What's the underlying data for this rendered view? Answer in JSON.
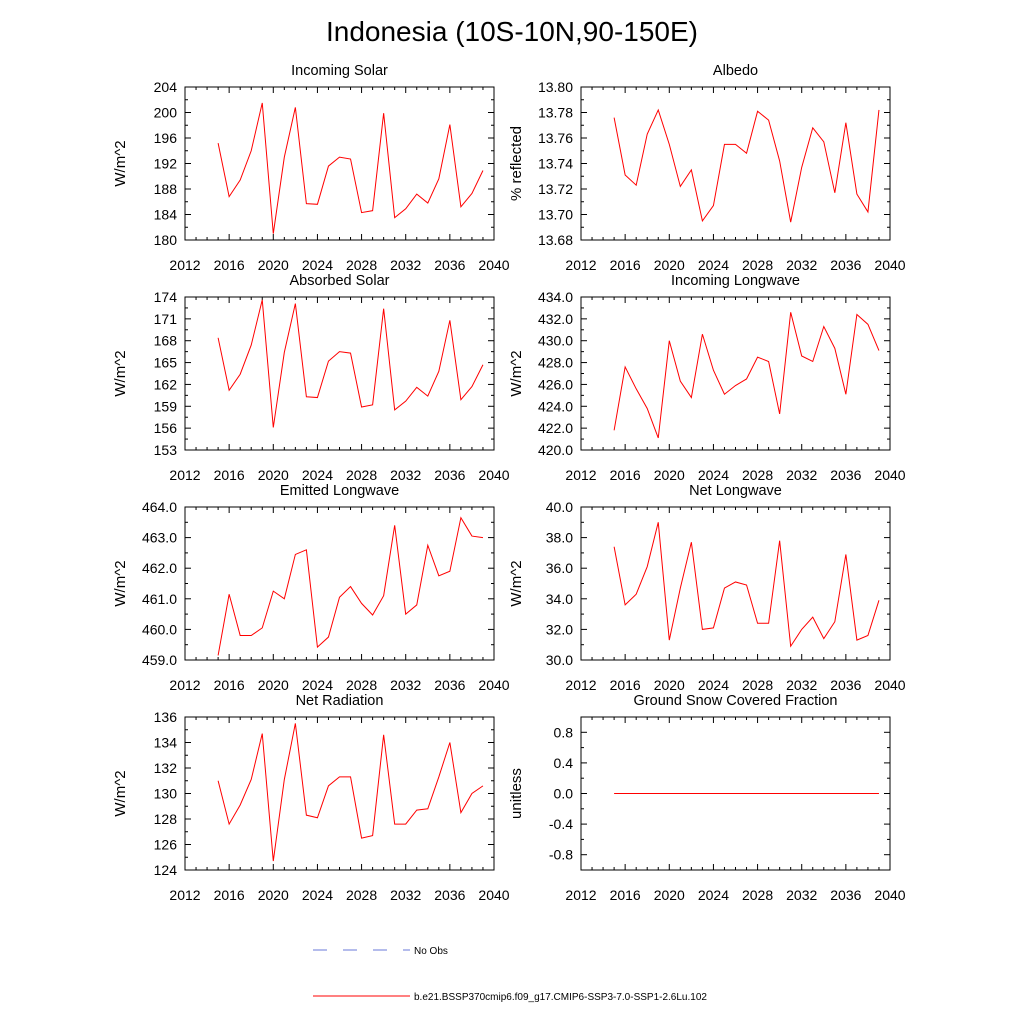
{
  "main_title": "Indonesia (10S-10N,90-150E)",
  "colors": {
    "series": "#ff0000",
    "no_obs": "#6a7ad8",
    "axis": "#000000"
  },
  "legend": {
    "no_obs_label": "No Obs",
    "series_label": "b.e21.BSSP370cmip6.f09_g17.CMIP6-SSP3-7.0-SSP1-2.6Lu.102"
  },
  "chart_data": [
    {
      "type": "line",
      "title": "Incoming Solar",
      "ylabel": "W/m^2",
      "xlim": [
        2012,
        2040
      ],
      "ylim": [
        180,
        204
      ],
      "xticks": [
        2012,
        2016,
        2020,
        2024,
        2028,
        2032,
        2036,
        2040
      ],
      "yticks": [
        180,
        184,
        188,
        192,
        196,
        200,
        204
      ],
      "ytick_labels": [
        "180",
        "184",
        "188",
        "192",
        "196",
        "200",
        "204"
      ],
      "x": [
        2015,
        2016,
        2017,
        2018,
        2019,
        2020,
        2021,
        2022,
        2023,
        2024,
        2025,
        2026,
        2027,
        2028,
        2029,
        2030,
        2031,
        2032,
        2033,
        2034,
        2035,
        2036,
        2037,
        2038,
        2039
      ],
      "series": [
        {
          "values": [
            195.2,
            186.8,
            189.4,
            194.0,
            201.5,
            181.0,
            193.0,
            200.8,
            185.7,
            185.6,
            191.6,
            193.0,
            192.7,
            184.3,
            184.6,
            199.9,
            183.5,
            184.9,
            187.2,
            185.8,
            189.6,
            198.1,
            185.2,
            187.3,
            190.9
          ]
        }
      ]
    },
    {
      "type": "line",
      "title": "Albedo",
      "ylabel": "% reflected",
      "xlim": [
        2012,
        2040
      ],
      "ylim": [
        13.68,
        13.8
      ],
      "xticks": [
        2012,
        2016,
        2020,
        2024,
        2028,
        2032,
        2036,
        2040
      ],
      "yticks": [
        13.68,
        13.7,
        13.72,
        13.74,
        13.76,
        13.78,
        13.8
      ],
      "ytick_labels": [
        "13.68",
        "13.70",
        "13.72",
        "13.74",
        "13.76",
        "13.78",
        "13.80"
      ],
      "x": [
        2015,
        2016,
        2017,
        2018,
        2019,
        2020,
        2021,
        2022,
        2023,
        2024,
        2025,
        2026,
        2027,
        2028,
        2029,
        2030,
        2031,
        2032,
        2033,
        2034,
        2035,
        2036,
        2037,
        2038,
        2039
      ],
      "series": [
        {
          "values": [
            13.776,
            13.731,
            13.723,
            13.763,
            13.782,
            13.755,
            13.722,
            13.735,
            13.695,
            13.707,
            13.755,
            13.755,
            13.748,
            13.781,
            13.774,
            13.742,
            13.694,
            13.737,
            13.768,
            13.757,
            13.717,
            13.772,
            13.716,
            13.702,
            13.782
          ]
        }
      ]
    },
    {
      "type": "line",
      "title": "Absorbed Solar",
      "ylabel": "W/m^2",
      "xlim": [
        2012,
        2040
      ],
      "ylim": [
        153,
        174
      ],
      "xticks": [
        2012,
        2016,
        2020,
        2024,
        2028,
        2032,
        2036,
        2040
      ],
      "yticks": [
        153,
        156,
        159,
        162,
        165,
        168,
        171,
        174
      ],
      "ytick_labels": [
        "153",
        "156",
        "159",
        "162",
        "165",
        "168",
        "171",
        "174"
      ],
      "x": [
        2015,
        2016,
        2017,
        2018,
        2019,
        2020,
        2021,
        2022,
        2023,
        2024,
        2025,
        2026,
        2027,
        2028,
        2029,
        2030,
        2031,
        2032,
        2033,
        2034,
        2035,
        2036,
        2037,
        2038,
        2039
      ],
      "series": [
        {
          "values": [
            168.4,
            161.2,
            163.4,
            167.4,
            173.6,
            156.1,
            166.4,
            173.1,
            160.3,
            160.2,
            165.2,
            166.5,
            166.3,
            158.9,
            159.2,
            172.4,
            158.5,
            159.7,
            161.6,
            160.4,
            163.8,
            170.8,
            159.9,
            161.7,
            164.7
          ]
        }
      ]
    },
    {
      "type": "line",
      "title": "Incoming Longwave",
      "ylabel": "W/m^2",
      "xlim": [
        2012,
        2040
      ],
      "ylim": [
        420,
        434
      ],
      "xticks": [
        2012,
        2016,
        2020,
        2024,
        2028,
        2032,
        2036,
        2040
      ],
      "yticks": [
        420,
        422,
        424,
        426,
        428,
        430,
        432,
        434
      ],
      "ytick_labels": [
        "420.0",
        "422.0",
        "424.0",
        "426.0",
        "428.0",
        "430.0",
        "432.0",
        "434.0"
      ],
      "x": [
        2015,
        2016,
        2017,
        2018,
        2019,
        2020,
        2021,
        2022,
        2023,
        2024,
        2025,
        2026,
        2027,
        2028,
        2029,
        2030,
        2031,
        2032,
        2033,
        2034,
        2035,
        2036,
        2037,
        2038,
        2039
      ],
      "series": [
        {
          "values": [
            421.8,
            427.6,
            425.6,
            423.8,
            421.1,
            430.0,
            426.3,
            424.8,
            430.6,
            427.3,
            425.1,
            425.9,
            426.5,
            428.5,
            428.1,
            423.3,
            432.6,
            428.6,
            428.1,
            431.3,
            429.3,
            425.1,
            432.4,
            431.5,
            429.1
          ]
        }
      ]
    },
    {
      "type": "line",
      "title": "Emitted Longwave",
      "ylabel": "W/m^2",
      "xlim": [
        2012,
        2040
      ],
      "ylim": [
        459,
        464
      ],
      "xticks": [
        2012,
        2016,
        2020,
        2024,
        2028,
        2032,
        2036,
        2040
      ],
      "yticks": [
        459,
        460,
        461,
        462,
        463,
        464
      ],
      "ytick_labels": [
        "459.0",
        "460.0",
        "461.0",
        "462.0",
        "463.0",
        "464.0"
      ],
      "x": [
        2015,
        2016,
        2017,
        2018,
        2019,
        2020,
        2021,
        2022,
        2023,
        2024,
        2025,
        2026,
        2027,
        2028,
        2029,
        2030,
        2031,
        2032,
        2033,
        2034,
        2035,
        2036,
        2037,
        2038,
        2039
      ],
      "series": [
        {
          "values": [
            459.15,
            461.15,
            459.8,
            459.8,
            460.05,
            461.25,
            461.0,
            462.45,
            462.6,
            459.42,
            459.75,
            461.05,
            461.4,
            460.85,
            460.47,
            461.1,
            463.4,
            460.5,
            460.8,
            462.75,
            461.75,
            461.9,
            463.65,
            463.05,
            463.0
          ]
        }
      ]
    },
    {
      "type": "line",
      "title": "Net Longwave",
      "ylabel": "W/m^2",
      "xlim": [
        2012,
        2040
      ],
      "ylim": [
        30,
        40
      ],
      "xticks": [
        2012,
        2016,
        2020,
        2024,
        2028,
        2032,
        2036,
        2040
      ],
      "yticks": [
        30,
        32,
        34,
        36,
        38,
        40
      ],
      "ytick_labels": [
        "30.0",
        "32.0",
        "34.0",
        "36.0",
        "38.0",
        "40.0"
      ],
      "x": [
        2015,
        2016,
        2017,
        2018,
        2019,
        2020,
        2021,
        2022,
        2023,
        2024,
        2025,
        2026,
        2027,
        2028,
        2029,
        2030,
        2031,
        2032,
        2033,
        2034,
        2035,
        2036,
        2037,
        2038,
        2039
      ],
      "series": [
        {
          "values": [
            37.4,
            33.6,
            34.3,
            36.1,
            39.0,
            31.3,
            34.7,
            37.7,
            32.0,
            32.1,
            34.7,
            35.1,
            34.9,
            32.4,
            32.4,
            37.8,
            30.9,
            32.0,
            32.8,
            31.4,
            32.5,
            36.9,
            31.3,
            31.6,
            33.9
          ]
        }
      ]
    },
    {
      "type": "line",
      "title": "Net Radiation",
      "ylabel": "W/m^2",
      "xlim": [
        2012,
        2040
      ],
      "ylim": [
        124,
        136
      ],
      "xticks": [
        2012,
        2016,
        2020,
        2024,
        2028,
        2032,
        2036,
        2040
      ],
      "yticks": [
        124,
        126,
        128,
        130,
        132,
        134,
        136
      ],
      "ytick_labels": [
        "124",
        "126",
        "128",
        "130",
        "132",
        "134",
        "136"
      ],
      "x": [
        2015,
        2016,
        2017,
        2018,
        2019,
        2020,
        2021,
        2022,
        2023,
        2024,
        2025,
        2026,
        2027,
        2028,
        2029,
        2030,
        2031,
        2032,
        2033,
        2034,
        2035,
        2036,
        2037,
        2038,
        2039
      ],
      "series": [
        {
          "values": [
            131.0,
            127.6,
            129.1,
            131.1,
            134.7,
            124.7,
            131.1,
            135.5,
            128.3,
            128.1,
            130.6,
            131.3,
            131.3,
            126.5,
            126.7,
            134.6,
            127.6,
            127.6,
            128.7,
            128.8,
            131.3,
            134.0,
            128.5,
            130.0,
            130.6
          ]
        }
      ]
    },
    {
      "type": "line",
      "title": "Ground Snow Covered Fraction",
      "ylabel": "unitless",
      "xlim": [
        2012,
        2040
      ],
      "ylim": [
        -1.0,
        1.0
      ],
      "xticks": [
        2012,
        2016,
        2020,
        2024,
        2028,
        2032,
        2036,
        2040
      ],
      "yticks": [
        -0.8,
        -0.4,
        0.0,
        0.4,
        0.8
      ],
      "ytick_labels": [
        "-0.8",
        "-0.4",
        "0.0",
        "0.4",
        "0.8"
      ],
      "x": [
        2015,
        2016,
        2017,
        2018,
        2019,
        2020,
        2021,
        2022,
        2023,
        2024,
        2025,
        2026,
        2027,
        2028,
        2029,
        2030,
        2031,
        2032,
        2033,
        2034,
        2035,
        2036,
        2037,
        2038,
        2039
      ],
      "series": [
        {
          "values": [
            0,
            0,
            0,
            0,
            0,
            0,
            0,
            0,
            0,
            0,
            0,
            0,
            0,
            0,
            0,
            0,
            0,
            0,
            0,
            0,
            0,
            0,
            0,
            0,
            0
          ]
        }
      ]
    }
  ]
}
